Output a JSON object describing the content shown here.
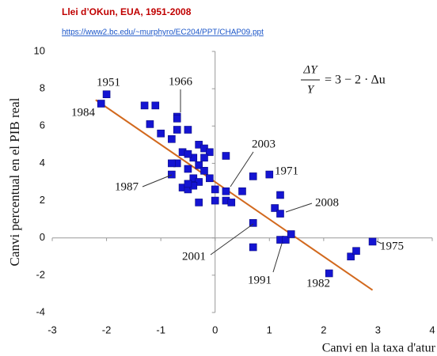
{
  "chart_data": {
    "type": "scatter",
    "title": "Llei d’OKun, EUA, 1951-2008",
    "subtitle": "https://www2.bc.edu/~murphyro/EC204/PPT/CHAP09.ppt",
    "x_label": "Canvi en la taxa d'atur",
    "y_label": "Canvi percentual en el PIB real",
    "equation": {
      "numerator": "ΔY",
      "denominator": "Y",
      "rest": "= 3 − 2 · Δu"
    },
    "color": "#1414d2",
    "trend": {
      "color": "#d2691e",
      "intercept": 3,
      "slope": -2,
      "x": [
        -2.2,
        2.9
      ]
    },
    "xlim": [
      -3,
      4
    ],
    "xticks": [
      -3,
      -2,
      -1,
      0,
      1,
      2,
      3,
      4
    ],
    "ylim": [
      -4,
      10
    ],
    "yticks": [
      -4,
      -2,
      0,
      2,
      4,
      6,
      8,
      10
    ],
    "x": [
      -2.0,
      -2.1,
      -1.3,
      -1.1,
      -1.2,
      -1.0,
      -0.7,
      -0.7,
      -0.5,
      -0.7,
      -0.8,
      -0.6,
      -0.4,
      -0.3,
      -0.2,
      -0.1,
      -0.2,
      -0.5,
      -0.7,
      -0.8,
      -0.8,
      -0.5,
      -0.3,
      -0.2,
      -0.1,
      -0.4,
      -0.3,
      -0.6,
      -0.5,
      -0.4,
      -0.5,
      -0.3,
      0.0,
      0.0,
      0.2,
      0.2,
      0.3,
      0.2,
      0.5,
      0.7,
      1.0,
      1.2,
      1.1,
      1.2,
      0.7,
      0.7,
      1.2,
      1.3,
      1.4,
      2.1,
      2.9,
      2.5,
      2.6
    ],
    "values": [
      7.7,
      7.2,
      7.1,
      7.1,
      6.1,
      5.6,
      6.5,
      6.4,
      5.8,
      5.8,
      5.3,
      4.6,
      4.3,
      5.0,
      4.8,
      4.6,
      4.3,
      4.5,
      4.0,
      4.0,
      3.4,
      3.7,
      3.9,
      3.6,
      3.2,
      3.2,
      3.0,
      2.7,
      2.6,
      2.8,
      2.9,
      1.9,
      2.6,
      2.0,
      2.5,
      2.0,
      1.9,
      4.4,
      2.5,
      3.3,
      3.4,
      2.3,
      1.6,
      1.3,
      0.8,
      -0.5,
      -0.1,
      -0.1,
      0.2,
      -1.9,
      -0.2,
      -1.0,
      -0.7
    ],
    "annotations": [
      "1951",
      "1966",
      "1984",
      "1987",
      "2003",
      "1971",
      "2008",
      "2001",
      "1991",
      "1982",
      "1975"
    ]
  }
}
